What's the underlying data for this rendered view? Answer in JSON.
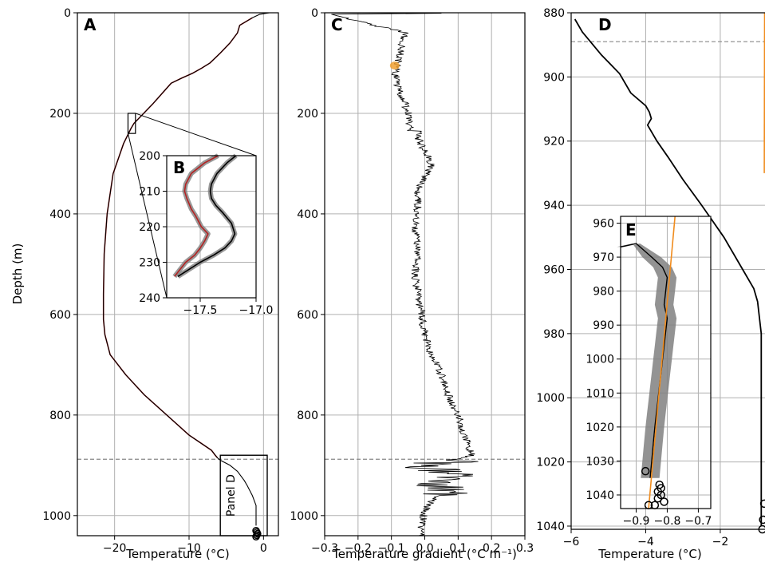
{
  "chart_data": [
    {
      "panel": "A",
      "type": "line",
      "xlabel": "Temperature (°C)",
      "ylabel": "Depth (m)",
      "xlim": [
        -25,
        2
      ],
      "ylim": [
        1040,
        0
      ],
      "xticks": [
        -20,
        -10,
        0
      ],
      "yticks": [
        0,
        200,
        400,
        600,
        800,
        1000
      ],
      "grid": true,
      "hline_dashed": 888,
      "inset_box_label": "Panel D",
      "series": [
        {
          "color": "#b22222",
          "x": [
            -1.5,
            -3.2,
            -3.5,
            -4.5,
            -5.8,
            -6.5,
            -7.2,
            -8.3,
            -9.5,
            -11,
            -12.4,
            -13.6,
            -14.8,
            -16.1,
            -17.4,
            -17.8,
            -18.8,
            -20.2,
            -21,
            -21.4,
            -21.5,
            -21.5,
            -21.3,
            -20.6,
            -18.5,
            -16,
            -13,
            -10,
            -7,
            -6.5,
            -6.2
          ],
          "y": [
            10,
            25,
            40,
            60,
            80,
            90,
            100,
            110,
            120,
            130,
            140,
            160,
            180,
            200,
            220,
            230,
            260,
            320,
            400,
            480,
            560,
            610,
            640,
            680,
            720,
            760,
            800,
            840,
            870,
            880,
            885
          ]
        },
        {
          "color": "#000000",
          "x": [
            0.8,
            -0.5,
            -1.5,
            -3.2,
            -3.5,
            -4.5,
            -5.8,
            -6.5,
            -7.2,
            -8.3,
            -9.5,
            -11,
            -12.4,
            -13.6,
            -14.8,
            -16.1,
            -17.4,
            -17.8,
            -18.8,
            -20.2,
            -21,
            -21.4,
            -21.5,
            -21.5,
            -21.3,
            -20.6,
            -18.5,
            -16,
            -13,
            -10,
            -7,
            -6.2,
            -5.8,
            -4.5,
            -3.5,
            -2.6,
            -2.2,
            -1.5,
            -1.0,
            -1.0
          ],
          "y": [
            0,
            3,
            10,
            25,
            40,
            60,
            80,
            90,
            100,
            110,
            120,
            130,
            140,
            160,
            180,
            200,
            220,
            230,
            260,
            320,
            400,
            480,
            560,
            610,
            640,
            680,
            720,
            760,
            800,
            840,
            870,
            885,
            890,
            900,
            912,
            930,
            940,
            960,
            980,
            1020
          ]
        }
      ],
      "markers": {
        "style": "open-circle",
        "x": [
          -1.0,
          -0.9,
          -0.8,
          -0.9,
          -1.0
        ],
        "y": [
          1030,
          1033,
          1036,
          1039,
          1042
        ]
      }
    },
    {
      "panel": "B",
      "type": "line",
      "xlim": [
        -17.8,
        -17.0
      ],
      "ylim": [
        240,
        200
      ],
      "xticks": [
        -17.5,
        -17.0
      ],
      "xtick_labels": [
        "−17.5",
        "−17.0"
      ],
      "yticks": [
        200,
        210,
        220,
        230,
        240
      ],
      "grid": true,
      "series": [
        {
          "color": "#b22222",
          "x": [
            -17.34,
            -17.46,
            -17.58,
            -17.63,
            -17.64,
            -17.62,
            -17.58,
            -17.54,
            -17.49,
            -17.43,
            -17.46,
            -17.5,
            -17.55,
            -17.63,
            -17.73
          ],
          "y": [
            200,
            202,
            205,
            208,
            210,
            212,
            215,
            217,
            220,
            222,
            224,
            226,
            228,
            230,
            234
          ]
        },
        {
          "color": "#000000",
          "x": [
            -17.18,
            -17.26,
            -17.35,
            -17.4,
            -17.41,
            -17.4,
            -17.36,
            -17.3,
            -17.22,
            -17.19,
            -17.22,
            -17.28,
            -17.38,
            -17.5,
            -17.7
          ],
          "y": [
            200,
            202,
            205,
            208,
            210,
            212,
            214,
            216,
            219,
            222,
            224,
            226,
            228,
            230,
            234
          ]
        }
      ]
    },
    {
      "panel": "C",
      "type": "line",
      "xlabel": "Temperature gradient (°C m⁻¹)",
      "xlim": [
        -0.3,
        0.3
      ],
      "ylim": [
        1040,
        0
      ],
      "xticks": [
        -0.3,
        -0.2,
        -0.1,
        0.0,
        0.1,
        0.2,
        0.3
      ],
      "xtick_labels": [
        "−0.3",
        "−0.2",
        "−0.1",
        "0.0",
        "0.1",
        "0.2",
        "0.3"
      ],
      "yticks": [
        0,
        200,
        400,
        600,
        800,
        1000
      ],
      "grid": true,
      "hline_dashed": 888,
      "series": [
        {
          "color": "#000000",
          "x": [
            0.05,
            -0.28,
            -0.06,
            -0.07,
            -0.08,
            -0.09,
            -0.08,
            -0.06,
            -0.05,
            -0.05,
            -0.04,
            -0.05,
            -0.03,
            -0.07,
            0.0,
            -0.02,
            0.02,
            -0.02,
            -0.02,
            -0.03,
            -0.02,
            -0.03,
            -0.02,
            -0.01,
            0.0,
            0.02,
            0.05,
            0.07,
            0.1,
            0.12,
            0.13,
            0.14,
            0.1,
            0.0,
            0.08,
            0.04,
            0.06,
            0.02,
            0.0,
            -0.01,
            -0.01
          ],
          "y": [
            1,
            3,
            40,
            70,
            100,
            120,
            150,
            180,
            200,
            215,
            225,
            235,
            222,
            232,
            218,
            250,
            300,
            350,
            380,
            420,
            480,
            520,
            560,
            600,
            640,
            680,
            720,
            760,
            800,
            840,
            860,
            880,
            888,
            905,
            915,
            928,
            950,
            970,
            990,
            1020,
            1040
          ]
        }
      ],
      "highlight": {
        "color": "#f0a030",
        "x": -0.09,
        "y": 105
      }
    },
    {
      "panel": "D",
      "type": "line",
      "xlabel": "Temperature (°C)",
      "xlim": [
        -6,
        -0.8
      ],
      "ylim": [
        1041,
        880
      ],
      "xticks": [
        -6,
        -4,
        -2
      ],
      "xtick_labels": [
        "−6",
        "−4",
        "−2"
      ],
      "yticks": [
        880,
        900,
        920,
        940,
        960,
        980,
        1000,
        1020,
        1040
      ],
      "grid": true,
      "hline_dashed": 889,
      "series": [
        {
          "color": "#000000",
          "x": [
            -5.9,
            -5.7,
            -5.2,
            -4.7,
            -4.4,
            -4.0,
            -3.9,
            -3.85,
            -3.95,
            -3.7,
            -3.4,
            -3.0,
            -2.5,
            -1.9,
            -1.4,
            -1.1,
            -1.0,
            -0.95,
            -0.9,
            -0.9,
            -0.9
          ],
          "y": [
            882,
            886,
            893,
            899,
            905,
            909,
            911,
            913,
            915,
            920,
            925,
            932,
            940,
            950,
            960,
            966,
            970,
            975,
            980,
            1010,
            1040
          ]
        },
        {
          "color": "#f08c1e",
          "x": [
            -0.82,
            -0.81
          ],
          "y": [
            930,
            880
          ]
        }
      ],
      "markers": {
        "style": "open-circle",
        "x": [
          -0.82,
          -0.85,
          -0.87
        ],
        "y": [
          1033,
          1038,
          1041
        ]
      }
    },
    {
      "panel": "E",
      "type": "line",
      "xlim": [
        -0.95,
        -0.66
      ],
      "ylim": [
        1044,
        958
      ],
      "xticks": [
        -0.9,
        -0.8,
        -0.7
      ],
      "xtick_labels": [
        "−0.9",
        "−0.8",
        "−0.7"
      ],
      "yticks": [
        960,
        970,
        980,
        990,
        1000,
        1010,
        1020,
        1030,
        1040
      ],
      "grid": true,
      "series": [
        {
          "color": "#000000",
          "x": [
            -0.95,
            -0.9,
            -0.85,
            -0.815,
            -0.8,
            -0.805,
            -0.81,
            -0.8,
            -0.805,
            -0.81,
            -0.815,
            -0.82,
            -0.825,
            -0.83,
            -0.835,
            -0.84,
            -0.845,
            -0.85,
            -0.855
          ],
          "y": [
            967,
            966,
            970,
            973,
            976,
            980,
            984,
            988,
            992,
            996,
            1000,
            1004,
            1008,
            1012,
            1016,
            1020,
            1025,
            1030,
            1035
          ]
        },
        {
          "color": "#f08c1e",
          "x": [
            -0.86,
            -0.775
          ],
          "y": [
            1044,
            958
          ]
        }
      ],
      "markers": {
        "style": "open-circle",
        "x": [
          -0.87,
          -0.825,
          -0.82,
          -0.83,
          -0.82,
          -0.83,
          -0.81,
          -0.84,
          -0.86
        ],
        "y": [
          1033,
          1037,
          1038,
          1039,
          1040,
          1041,
          1042,
          1043,
          1043
        ]
      }
    }
  ],
  "panels": {
    "A": {
      "letter": "A"
    },
    "B": {
      "letter": "B"
    },
    "C": {
      "letter": "C"
    },
    "D": {
      "letter": "D"
    },
    "E": {
      "letter": "E"
    }
  },
  "colors": {
    "red_profile": "#b22222",
    "fit_orange": "#f08c1e",
    "band_gray": "#808080",
    "grid": "#b0b0b0"
  }
}
